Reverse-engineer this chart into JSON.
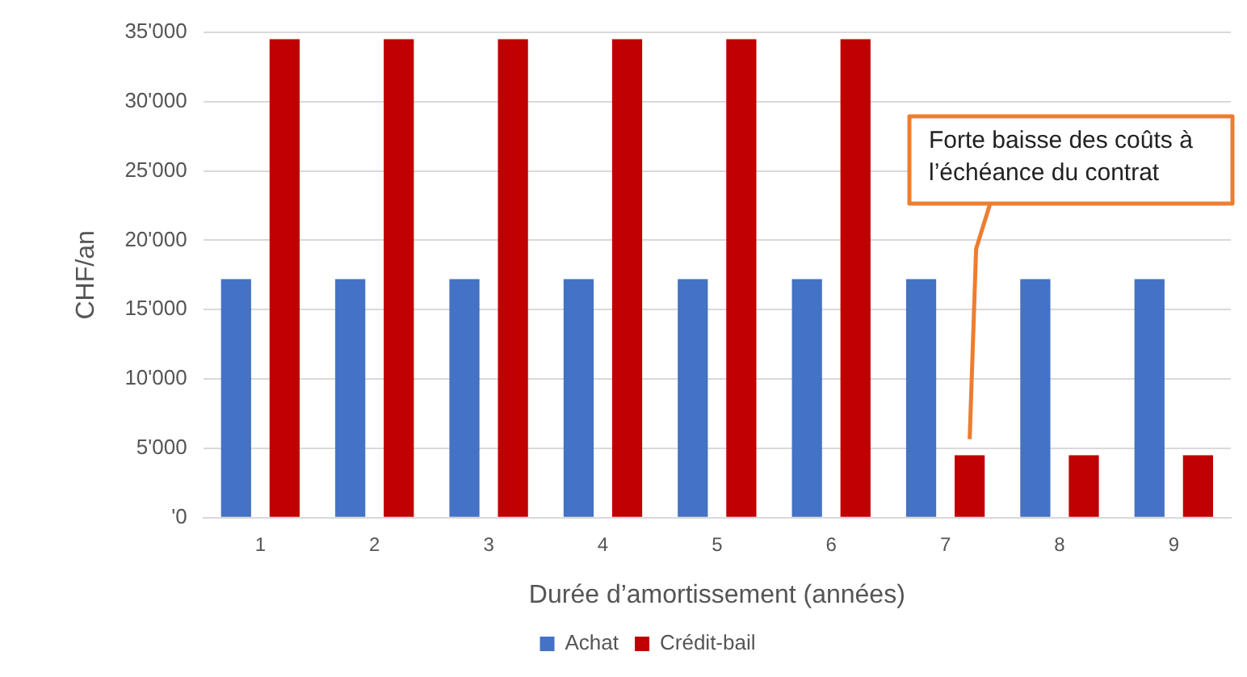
{
  "chart_data": {
    "type": "bar",
    "xlabel": "Durée d’amortissement (années)",
    "ylabel": "CHF/an",
    "categories": [
      "1",
      "2",
      "3",
      "4",
      "5",
      "6",
      "7",
      "8",
      "9"
    ],
    "series": [
      {
        "name": "Achat",
        "color": "#4472c4",
        "values": [
          17200,
          17200,
          17200,
          17200,
          17200,
          17200,
          17200,
          17200,
          17200
        ]
      },
      {
        "name": "Crédit-bail",
        "color": "#c00000",
        "values": [
          34500,
          34500,
          34500,
          34500,
          34500,
          34500,
          4500,
          4500,
          4500
        ]
      }
    ],
    "ylim": [
      0,
      35000
    ],
    "yticks": [
      {
        "value": 0,
        "label": "'0"
      },
      {
        "value": 5000,
        "label": "5'000"
      },
      {
        "value": 10000,
        "label": "10'000"
      },
      {
        "value": 15000,
        "label": "15'000"
      },
      {
        "value": 20000,
        "label": "20'000"
      },
      {
        "value": 25000,
        "label": "25'000"
      },
      {
        "value": 30000,
        "label": "30'000"
      },
      {
        "value": 35000,
        "label": "35'000"
      }
    ],
    "grid": "y",
    "legend": "bottom",
    "annotations": [
      "Forte baisse des coûts à l’échéance du contrat"
    ]
  }
}
